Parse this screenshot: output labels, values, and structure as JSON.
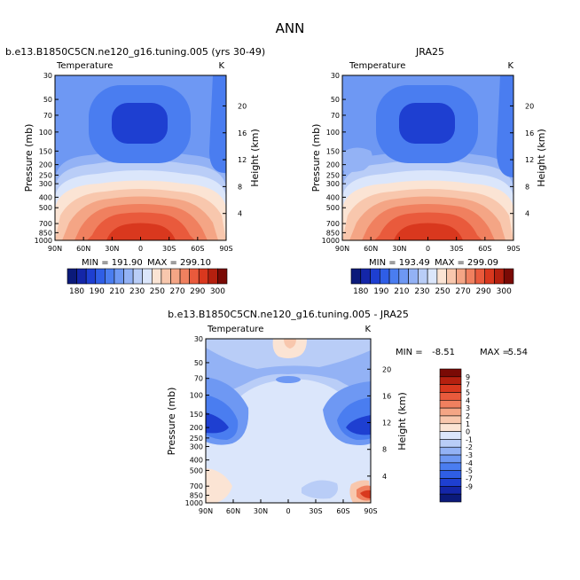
{
  "page_title": "ANN",
  "colors": {
    "model_scale": [
      "#0b1a7a",
      "#1426a8",
      "#1e3fd1",
      "#2f5ee6",
      "#4a7df0",
      "#6e98f3",
      "#93b2f5",
      "#b9cdf7",
      "#dbe6fb",
      "#fbe4d4",
      "#f8c7ad",
      "#f4a585",
      "#f0805f",
      "#e95a3c",
      "#d9381e",
      "#b5200f",
      "#7a0a05"
    ],
    "diff_scale": [
      "#0b1a7a",
      "#1426a8",
      "#1e3fd1",
      "#2f5ee6",
      "#4a7df0",
      "#6e98f3",
      "#93b2f5",
      "#b9cdf7",
      "#dbe6fb",
      "#fbe4d4",
      "#f8c7ad",
      "#f4a585",
      "#f0805f",
      "#e95a3c",
      "#d9381e",
      "#b5200f",
      "#7a0a05"
    ]
  },
  "chart_data": [
    {
      "type": "heatmap",
      "panel": "model",
      "title": "b.e13.B1850C5CN.ne120_g16.tuning.005 (yrs 30-49)",
      "variable": "Temperature",
      "units": "K",
      "ylabel": "Pressure (mb)",
      "y2label": "Height (km)",
      "x_ticks": [
        "90N",
        "60N",
        "30N",
        "0",
        "30S",
        "60S",
        "90S"
      ],
      "x_values": [
        90,
        60,
        30,
        0,
        -30,
        -60,
        -90
      ],
      "p_ticks": [
        "30",
        "50",
        "70",
        "100",
        "150",
        "200",
        "250",
        "300",
        "400",
        "500",
        "700",
        "850",
        "1000"
      ],
      "p_values": [
        30,
        50,
        70,
        100,
        150,
        200,
        250,
        300,
        400,
        500,
        700,
        850,
        1000
      ],
      "h_ticks": [
        "20",
        "16",
        "12",
        "8",
        "4"
      ],
      "h_values": [
        20,
        16,
        12,
        8,
        4
      ],
      "min_label": "MIN = 191.90",
      "max_label": "MAX = 299.10",
      "min": 191.9,
      "max": 299.1,
      "colorbar_labels": [
        "180",
        "190",
        "210",
        "230",
        "250",
        "270",
        "290",
        "300"
      ],
      "colorbar_levels": [
        180,
        185,
        190,
        200,
        210,
        220,
        230,
        240,
        250,
        260,
        270,
        280,
        290,
        295,
        300
      ]
    },
    {
      "type": "heatmap",
      "panel": "obs",
      "title": "JRA25",
      "variable": "Temperature",
      "units": "K",
      "ylabel": "Pressure (mb)",
      "y2label": "Height (km)",
      "x_ticks": [
        "90N",
        "60N",
        "30N",
        "0",
        "30S",
        "60S",
        "90S"
      ],
      "x_values": [
        90,
        60,
        30,
        0,
        -30,
        -60,
        -90
      ],
      "p_ticks": [
        "30",
        "50",
        "70",
        "100",
        "150",
        "200",
        "250",
        "300",
        "400",
        "500",
        "700",
        "850",
        "1000"
      ],
      "p_values": [
        30,
        50,
        70,
        100,
        150,
        200,
        250,
        300,
        400,
        500,
        700,
        850,
        1000
      ],
      "h_ticks": [
        "20",
        "16",
        "12",
        "8",
        "4"
      ],
      "h_values": [
        20,
        16,
        12,
        8,
        4
      ],
      "min_label": "MIN = 193.49",
      "max_label": "MAX = 299.09",
      "min": 193.49,
      "max": 299.09,
      "colorbar_labels": [
        "180",
        "190",
        "210",
        "230",
        "250",
        "270",
        "290",
        "300"
      ],
      "colorbar_levels": [
        180,
        185,
        190,
        200,
        210,
        220,
        230,
        240,
        250,
        260,
        270,
        280,
        290,
        295,
        300
      ]
    },
    {
      "type": "heatmap",
      "panel": "diff",
      "title": "b.e13.B1850C5CN.ne120_g16.tuning.005 - JRA25",
      "variable": "Temperature",
      "units": "K",
      "ylabel": "Pressure (mb)",
      "y2label": "Height (km)",
      "x_ticks": [
        "90N",
        "60N",
        "30N",
        "0",
        "30S",
        "60S",
        "90S"
      ],
      "x_values": [
        90,
        60,
        30,
        0,
        -30,
        -60,
        -90
      ],
      "p_ticks": [
        "30",
        "50",
        "70",
        "100",
        "150",
        "200",
        "250",
        "300",
        "400",
        "500",
        "700",
        "850",
        "1000"
      ],
      "p_values": [
        30,
        50,
        70,
        100,
        150,
        200,
        250,
        300,
        400,
        500,
        700,
        850,
        1000
      ],
      "h_ticks": [
        "20",
        "16",
        "12",
        "8",
        "4"
      ],
      "h_values": [
        20,
        16,
        12,
        8,
        4
      ],
      "min_label": "MIN =",
      "min_value": "-8.51",
      "max_label": "MAX =",
      "max_value": "5.54",
      "min": -8.51,
      "max": 5.54,
      "colorbar_labels": [
        "9",
        "7",
        "5",
        "4",
        "3",
        "2",
        "1",
        "0",
        "-1",
        "-2",
        "-3",
        "-4",
        "-5",
        "-7",
        "-9"
      ]
    }
  ]
}
